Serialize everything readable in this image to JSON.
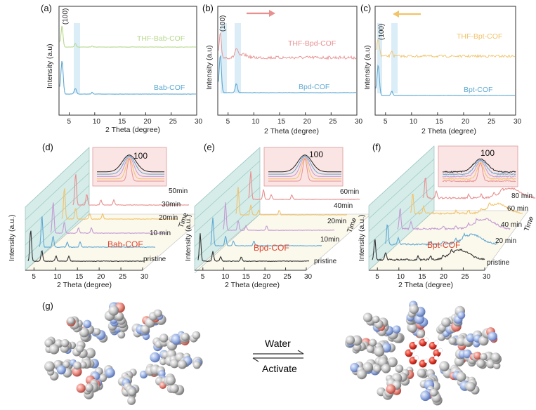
{
  "colors": {
    "blue": "#5fa9d2",
    "bab_thf": "#b8d88d",
    "bpd_thf": "#e88f8f",
    "bpt_thf": "#f1c36a",
    "highlight": "#cfe7f4",
    "red_label": "#e0452f",
    "wall": "#d5ece9",
    "floor": "#fbf8ec",
    "inset_bg": "#fbe4e4"
  },
  "top_panels": [
    {
      "label": "(a)",
      "peak": "(100)",
      "top_series": "THF-Bab-COF",
      "bottom_series": "Bab-COF",
      "arrow": "none"
    },
    {
      "label": "(b)",
      "peak": "(100)",
      "top_series": "THF-Bpd-COF",
      "bottom_series": "Bpd-COF",
      "arrow": "right"
    },
    {
      "label": "(c)",
      "peak": "(100)",
      "top_series": "THF-Bpt-COF",
      "bottom_series": "Bpt-COF",
      "arrow": "left"
    }
  ],
  "top_axes": {
    "xlabel": "2 Theta (degree)",
    "ylabel": "Intensity (a.u)",
    "xticks": [
      "5",
      "10",
      "15",
      "20",
      "25",
      "30"
    ]
  },
  "mid_panels": [
    {
      "label": "(d)",
      "name": "Bab-COF",
      "times": [
        "pristine",
        "10 min",
        "20min",
        "30min",
        "50min"
      ],
      "inset": "100"
    },
    {
      "label": "(e)",
      "name": "Bpd-COF",
      "times": [
        "pristine",
        "10min",
        "20min",
        "40min",
        "60min"
      ],
      "inset": "100"
    },
    {
      "label": "(f)",
      "name": "Bpt-COF",
      "times": [
        "pristine",
        "20 min",
        "40 min",
        "60 min",
        "80 min"
      ],
      "inset": "100"
    }
  ],
  "mid_axes": {
    "xlabel": "2 Theta (degree)",
    "ylabel": "Intensity (a.u.)",
    "time_label": "Time",
    "xticks": [
      "5",
      "10",
      "15",
      "20",
      "25",
      "30"
    ]
  },
  "bottom": {
    "label": "(g)",
    "forward": "Water",
    "backward": "Activate"
  },
  "chart_data": [
    {
      "type": "line",
      "panel": "(a)",
      "xlabel": "2 Theta (degree)",
      "ylabel": "Intensity (a.u)",
      "xlim": [
        3,
        30
      ],
      "series": [
        {
          "name": "THF-Bab-COF",
          "peaks": [
            3.6,
            6.2,
            9.5
          ]
        },
        {
          "name": "Bab-COF",
          "peaks": [
            3.6,
            6.2,
            9.5
          ]
        }
      ]
    },
    {
      "type": "line",
      "panel": "(b)",
      "xlabel": "2 Theta (degree)",
      "ylabel": "Intensity (a.u)",
      "xlim": [
        3,
        30
      ],
      "series": [
        {
          "name": "THF-Bpd-COF",
          "peaks": [
            3.5,
            6.6
          ]
        },
        {
          "name": "Bpd-COF",
          "peaks": [
            3.5,
            6.6
          ]
        }
      ]
    },
    {
      "type": "line",
      "panel": "(c)",
      "xlabel": "2 Theta (degree)",
      "ylabel": "Intensity (a.u)",
      "xlim": [
        3,
        30
      ],
      "series": [
        {
          "name": "THF-Bpt-COF",
          "peaks": [
            3.6,
            6.2
          ]
        },
        {
          "name": "Bpt-COF",
          "peaks": [
            3.6,
            6.2
          ]
        }
      ]
    },
    {
      "type": "line",
      "panel": "(d)",
      "xlabel": "2 Theta (degree)",
      "ylabel": "Intensity (a.u.)",
      "series_labels": [
        "pristine",
        "10 min",
        "20min",
        "30min",
        "50min"
      ]
    },
    {
      "type": "line",
      "panel": "(e)",
      "xlabel": "2 Theta (degree)",
      "ylabel": "Intensity (a.u.)",
      "series_labels": [
        "pristine",
        "10min",
        "20min",
        "40min",
        "60min"
      ]
    },
    {
      "type": "line",
      "panel": "(f)",
      "xlabel": "2 Theta (degree)",
      "ylabel": "Intensity (a.u.)",
      "series_labels": [
        "pristine",
        "20 min",
        "40 min",
        "60 min",
        "80 min"
      ]
    }
  ]
}
